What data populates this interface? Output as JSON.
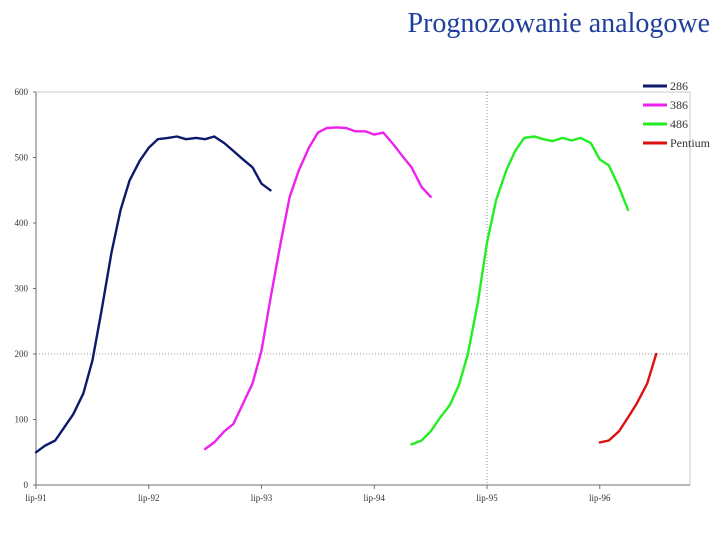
{
  "slide": {
    "title": "Prognozowanie analogowe"
  },
  "chart_data": {
    "type": "line",
    "title": "",
    "xlabel": "",
    "ylabel": "",
    "x_ticks": [
      "lip-91",
      "lip-92",
      "lip-93",
      "lip-94",
      "lip-95",
      "lip-96"
    ],
    "xlim": [
      0,
      5.8
    ],
    "ylim": [
      0,
      600
    ],
    "y_ticks": [
      0,
      100,
      200,
      300,
      400,
      500,
      600
    ],
    "grid": {
      "vertical_at": 4.0,
      "horizontal_at": 200,
      "style": "dotted"
    },
    "legend_position": "top-right",
    "series": [
      {
        "name": "286",
        "color": "#0d1a6b",
        "x": [
          0.0,
          0.08,
          0.17,
          0.25,
          0.33,
          0.42,
          0.5,
          0.58,
          0.67,
          0.75,
          0.83,
          0.92,
          1.0,
          1.08,
          1.17,
          1.25,
          1.33,
          1.42,
          1.5,
          1.58,
          1.67,
          1.75,
          1.83,
          1.92,
          2.0,
          2.08,
          2.17,
          2.25,
          2.33
        ],
        "y": [
          50,
          60,
          68,
          88,
          108,
          140,
          190,
          265,
          355,
          420,
          465,
          495,
          515,
          528,
          530,
          532,
          528,
          530,
          528,
          532,
          522,
          510,
          498,
          485,
          460,
          450,
          null,
          null,
          null
        ]
      },
      {
        "name": "386",
        "color": "#ee22ee",
        "x": [
          1.5,
          1.58,
          1.67,
          1.75,
          1.83,
          1.92,
          2.0,
          2.08,
          2.17,
          2.25,
          2.33,
          2.42,
          2.5,
          2.58,
          2.67,
          2.75,
          2.83,
          2.92,
          3.0,
          3.08,
          3.17,
          3.25,
          3.33,
          3.42,
          3.5,
          3.58,
          3.67,
          3.75,
          3.83
        ],
        "y": [
          55,
          65,
          82,
          93,
          122,
          155,
          205,
          285,
          370,
          440,
          480,
          515,
          538,
          545,
          546,
          545,
          540,
          540,
          535,
          538,
          520,
          502,
          485,
          455,
          440,
          null,
          null,
          null,
          null
        ]
      },
      {
        "name": "486",
        "color": "#22ee22",
        "x": [
          3.33,
          3.42,
          3.5,
          3.58,
          3.67,
          3.75,
          3.83,
          3.92,
          4.0,
          4.08,
          4.17,
          4.25,
          4.33,
          4.42,
          4.5,
          4.58,
          4.67,
          4.75,
          4.83,
          4.92,
          5.0,
          5.08,
          5.17,
          5.25
        ],
        "y": [
          62,
          68,
          82,
          102,
          122,
          152,
          200,
          280,
          370,
          435,
          480,
          510,
          530,
          532,
          528,
          525,
          530,
          526,
          530,
          522,
          497,
          488,
          455,
          420
        ]
      },
      {
        "name": "Pentium",
        "color": "#dd1111",
        "x": [
          5.0,
          5.08,
          5.17,
          5.25,
          5.33,
          5.42,
          5.5
        ],
        "y": [
          65,
          68,
          82,
          103,
          125,
          155,
          200
        ]
      }
    ]
  }
}
